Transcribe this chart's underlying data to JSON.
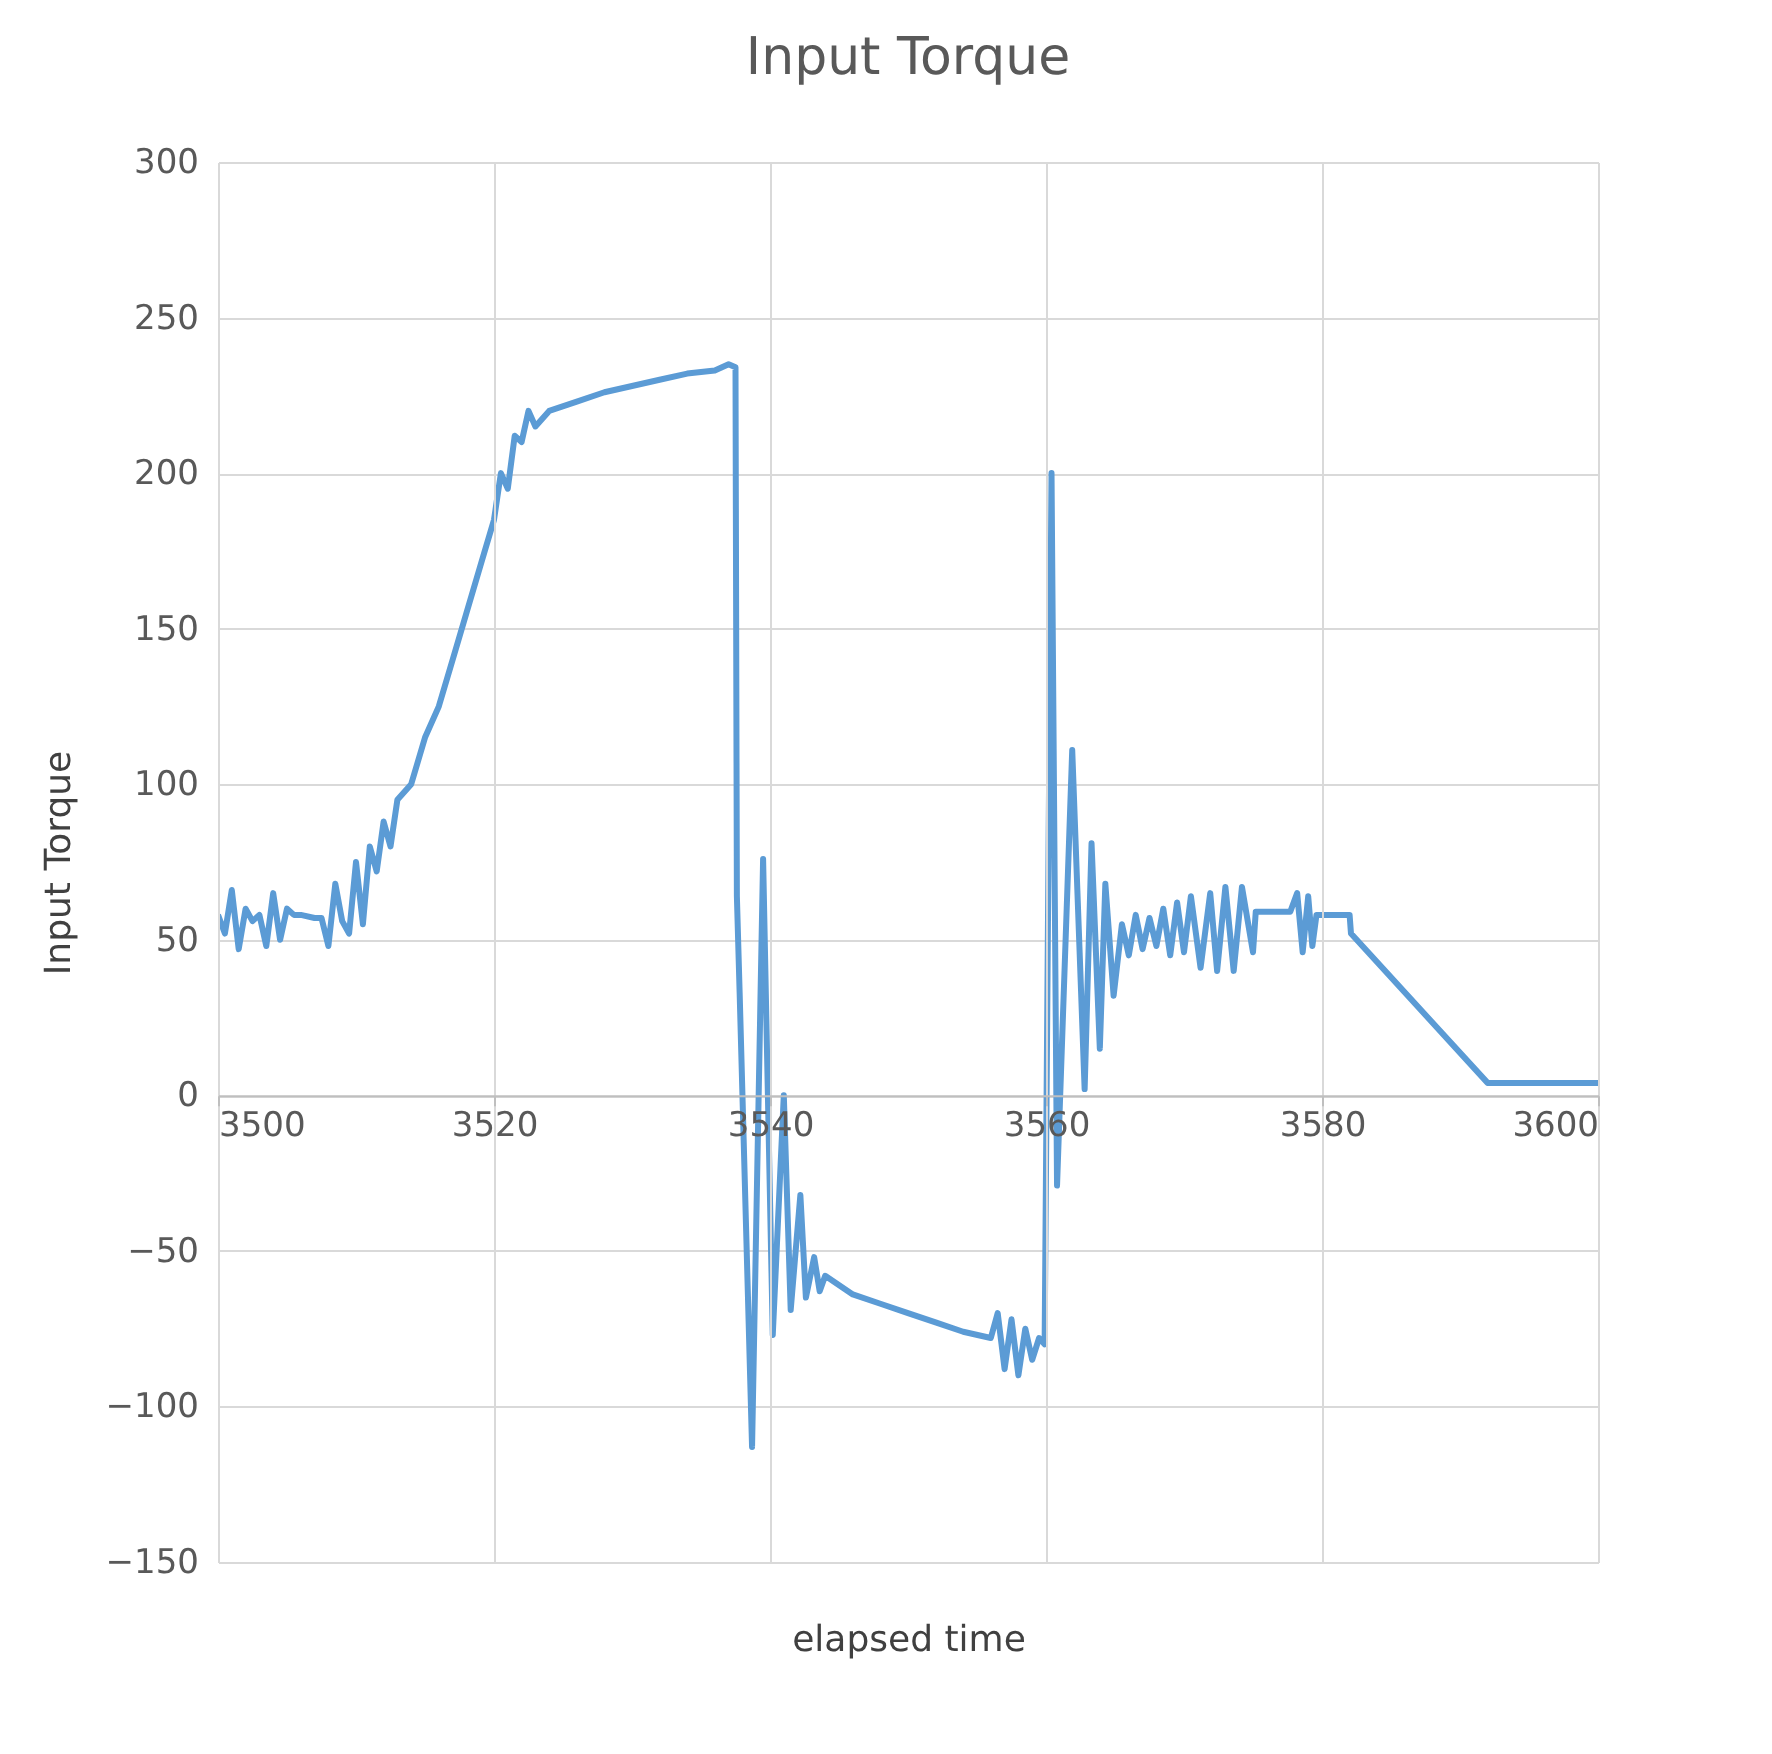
{
  "chart_data": {
    "type": "line",
    "title": "Input Torque",
    "xlabel": "elapsed time",
    "ylabel": "Input Torque",
    "xlim": [
      3500,
      3600
    ],
    "ylim": [
      -150,
      300
    ],
    "xticks": [
      3500,
      3520,
      3540,
      3560,
      3580,
      3600
    ],
    "yticks": [
      -150,
      -100,
      -50,
      0,
      50,
      100,
      150,
      200,
      250,
      300
    ],
    "grid": true,
    "marker": "none",
    "line_style": "solid",
    "series": [
      {
        "color": "#5b9bd5",
        "x": [
          3500,
          3500.5,
          3501,
          3501.5,
          3502,
          3502.5,
          3503,
          3503.5,
          3504,
          3504.5,
          3505,
          3505.5,
          3506,
          3507,
          3507.5,
          3508,
          3508.5,
          3509,
          3509.5,
          3510,
          3510.5,
          3511,
          3511.5,
          3512,
          3512.5,
          3513,
          3514,
          3515,
          3516,
          3517,
          3518,
          3519,
          3520,
          3520.5,
          3521,
          3521.5,
          3522,
          3522.5,
          3523,
          3524,
          3526,
          3528,
          3530,
          3532,
          3534,
          3536,
          3537,
          3537.5,
          3537.6,
          3537.8,
          3538.7,
          3539.5,
          3540.2,
          3541.0,
          3541.5,
          3542.2,
          3542.6,
          3543.2,
          3543.6,
          3544,
          3546,
          3548,
          3550,
          3552,
          3554,
          3556,
          3556.5,
          3557,
          3557.5,
          3558,
          3558.5,
          3559,
          3559.5,
          3559.9,
          3560.4,
          3560.8,
          3561.9,
          3562.8,
          3563.3,
          3563.9,
          3564.3,
          3564.9,
          3565.5,
          3566,
          3566.5,
          3567,
          3567.5,
          3568,
          3568.5,
          3569,
          3569.5,
          3570,
          3570.5,
          3571.2,
          3571.9,
          3572.4,
          3573.0,
          3573.6,
          3574.2,
          3575.0,
          3575.2,
          3577.7,
          3578.2,
          3578.6,
          3579.0,
          3579.3,
          3579.6,
          3580,
          3582,
          3582.1,
          3592,
          3600
        ],
        "values": [
          58,
          52,
          66,
          47,
          60,
          56,
          58,
          48,
          65,
          50,
          60,
          58,
          58,
          57,
          57,
          48,
          68,
          56,
          52,
          75,
          55,
          80,
          72,
          88,
          80,
          95,
          100,
          115,
          125,
          140,
          155,
          170,
          185,
          200,
          195,
          212,
          210,
          220,
          215,
          220,
          223,
          226,
          228,
          230,
          232,
          233,
          235,
          234,
          64,
          33,
          -113,
          76,
          -77,
          0,
          -69,
          -32,
          -65,
          -52,
          -63,
          -58,
          -64,
          -67,
          -70,
          -73,
          -76,
          -78,
          -70,
          -88,
          -72,
          -90,
          -75,
          -85,
          -78,
          -80,
          200,
          -29,
          111,
          2,
          81,
          15,
          68,
          32,
          55,
          45,
          58,
          47,
          57,
          48,
          60,
          45,
          62,
          46,
          64,
          41,
          65,
          40,
          67,
          40,
          67,
          46,
          59,
          59,
          65,
          46,
          64,
          48,
          58,
          58,
          58,
          52,
          4,
          4
        ]
      }
    ]
  }
}
